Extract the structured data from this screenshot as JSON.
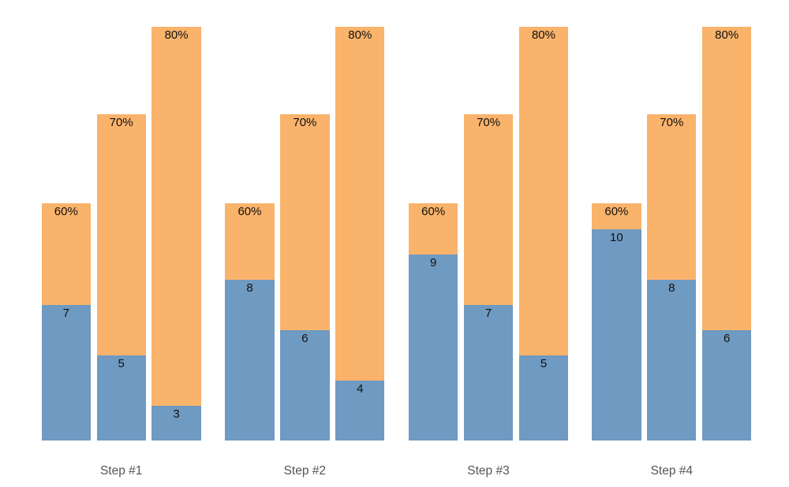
{
  "chart_data": {
    "type": "bar",
    "subtype": "grouped-stacked",
    "title": "",
    "xlabel": "",
    "ylabel": "",
    "legend_visible": false,
    "axes_visible": false,
    "background": "#ffffff",
    "categories": [
      "Step #1",
      "Step #2",
      "Step #3",
      "Step #4"
    ],
    "colors": {
      "blue_segment": "#6F9AC1",
      "orange_segment": "#F9B36B",
      "value_label": "#111111",
      "axis_label": "#545454"
    },
    "groups": [
      {
        "label": "Step #1",
        "bars": [
          {
            "blue_value": 7,
            "blue_label": "7",
            "pct": 60,
            "pct_label": "60%"
          },
          {
            "blue_value": 5,
            "blue_label": "5",
            "pct": 70,
            "pct_label": "70%"
          },
          {
            "blue_value": 3,
            "blue_label": "3",
            "pct": 80,
            "pct_label": "80%"
          }
        ]
      },
      {
        "label": "Step #2",
        "bars": [
          {
            "blue_value": 8,
            "blue_label": "8",
            "pct": 60,
            "pct_label": "60%"
          },
          {
            "blue_value": 6,
            "blue_label": "6",
            "pct": 70,
            "pct_label": "70%"
          },
          {
            "blue_value": 4,
            "blue_label": "4",
            "pct": 80,
            "pct_label": "80%"
          }
        ]
      },
      {
        "label": "Step #3",
        "bars": [
          {
            "blue_value": 9,
            "blue_label": "9",
            "pct": 60,
            "pct_label": "60%"
          },
          {
            "blue_value": 7,
            "blue_label": "7",
            "pct": 70,
            "pct_label": "70%"
          },
          {
            "blue_value": 5,
            "blue_label": "5",
            "pct": 80,
            "pct_label": "80%"
          }
        ]
      },
      {
        "label": "Step #4",
        "bars": [
          {
            "blue_value": 10,
            "blue_label": "10",
            "pct": 60,
            "pct_label": "60%"
          },
          {
            "blue_value": 8,
            "blue_label": "8",
            "pct": 70,
            "pct_label": "70%"
          },
          {
            "blue_value": 6,
            "blue_label": "6",
            "pct": 80,
            "pct_label": "80%"
          }
        ]
      }
    ],
    "series": [
      {
        "name": "blue-bottom-values",
        "values": [
          7,
          5,
          3,
          8,
          6,
          4,
          9,
          7,
          5,
          10,
          8,
          6
        ]
      },
      {
        "name": "orange-top-percents",
        "values": [
          60,
          70,
          80,
          60,
          70,
          80,
          60,
          70,
          80,
          60,
          70,
          80
        ]
      }
    ]
  }
}
